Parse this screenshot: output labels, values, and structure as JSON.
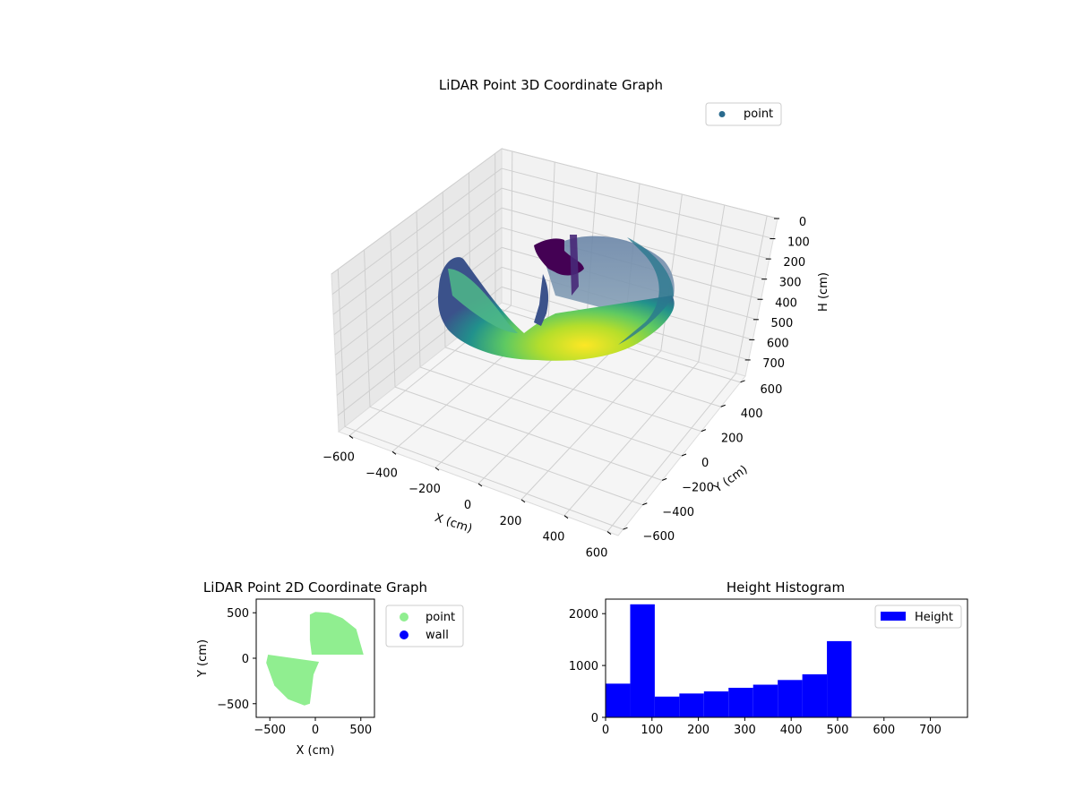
{
  "chart_data": [
    {
      "type": "scatter3d",
      "title": "LiDAR Point 3D Coordinate Graph",
      "xlabel": "X (cm)",
      "ylabel": "Y (cm)",
      "zlabel": "H (cm)",
      "xlim": [
        -650,
        650
      ],
      "ylim": [
        -650,
        650
      ],
      "zlim": [
        780,
        0
      ],
      "xticks": [
        "−600",
        "−400",
        "−200",
        "0",
        "200",
        "400",
        "600"
      ],
      "yticks": [
        "600",
        "400",
        "200",
        "0",
        "−200",
        "−400",
        "−600"
      ],
      "zticks": [
        "0",
        "100",
        "200",
        "300",
        "400",
        "500",
        "600",
        "700"
      ],
      "colormap": "viridis",
      "legend": [
        "point"
      ],
      "legend_position": "top-right",
      "grid": true
    },
    {
      "type": "scatter",
      "title": "LiDAR Point 2D Coordinate Graph",
      "xlabel": "X (cm)",
      "ylabel": "Y (cm)",
      "xlim": [
        -650,
        650
      ],
      "ylim": [
        -650,
        650
      ],
      "xticks": [
        "−500",
        "0",
        "500"
      ],
      "yticks": [
        "500",
        "0",
        "−500"
      ],
      "series": [
        {
          "name": "point",
          "color": "#90ee90"
        },
        {
          "name": "wall",
          "color": "#0000ff"
        }
      ],
      "legend_position": "outside-right"
    },
    {
      "type": "bar",
      "title": "Height Histogram",
      "xlim": [
        0,
        780
      ],
      "ylim": [
        0,
        2280
      ],
      "xticks": [
        "0",
        "100",
        "200",
        "300",
        "400",
        "500",
        "600",
        "700"
      ],
      "yticks": [
        "0",
        "1000",
        "2000"
      ],
      "bin_edges": [
        0,
        53,
        106,
        159,
        212,
        265,
        318,
        371,
        424,
        477,
        530
      ],
      "values": [
        650,
        2180,
        400,
        460,
        500,
        570,
        630,
        720,
        830,
        1470
      ],
      "series": [
        {
          "name": "Height",
          "color": "#0000ff"
        }
      ],
      "legend_position": "top-right"
    }
  ]
}
